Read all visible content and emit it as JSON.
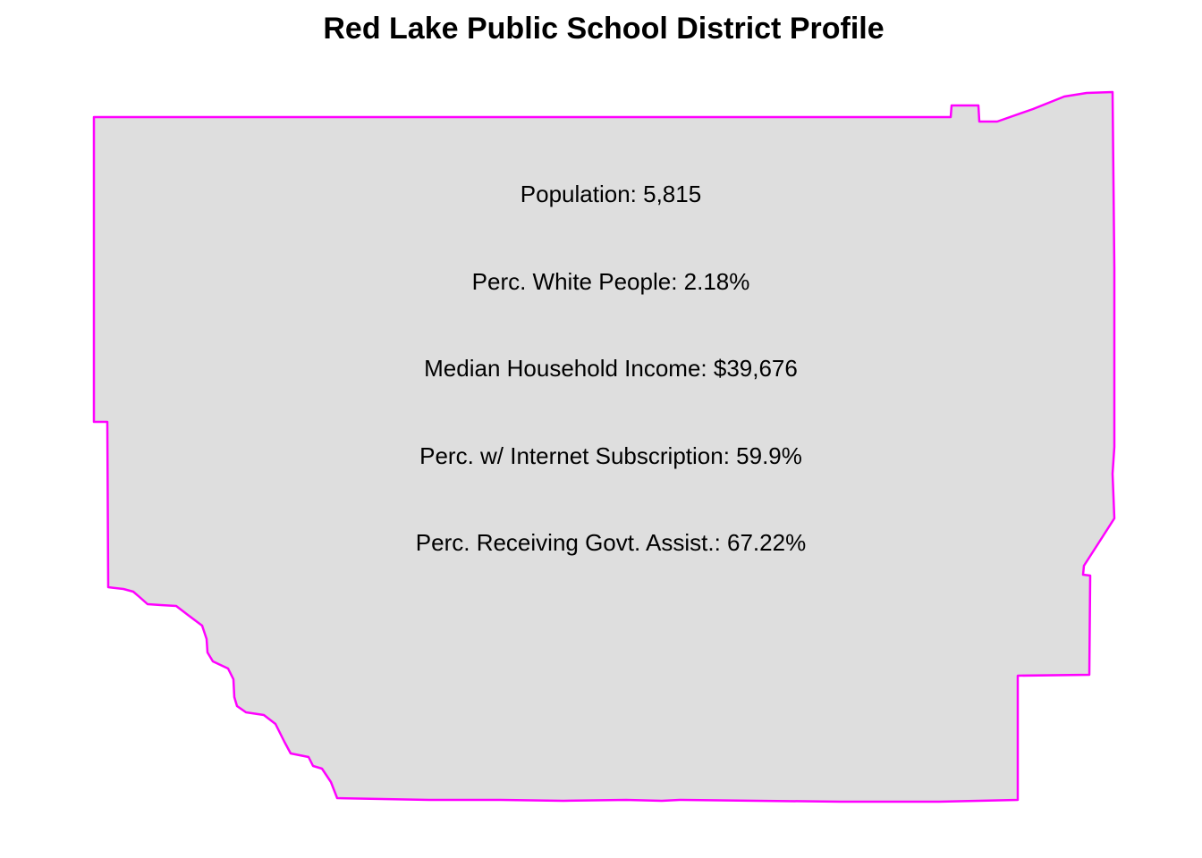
{
  "title": "Red Lake Public School District Profile",
  "district": {
    "fill_color": "#dedede",
    "border_color": "#ff00ff"
  },
  "stats": [
    {
      "label": "Population: 5,815"
    },
    {
      "label": "Perc. White People: 2.18%"
    },
    {
      "label": "Median Household Income: $39,676"
    },
    {
      "label": "Perc. w/ Internet Subscription: 59.9%"
    },
    {
      "label": "Perc. Receiving Govt. Assist.: 67.22%"
    }
  ]
}
